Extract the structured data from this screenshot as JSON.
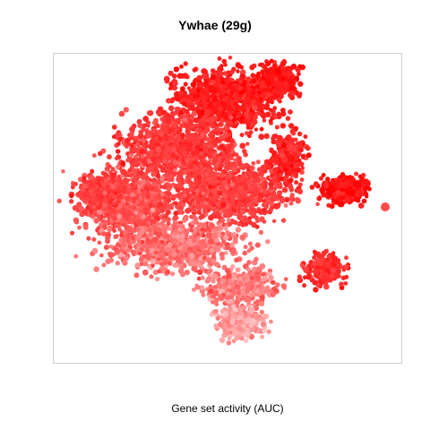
{
  "chart_data": {
    "type": "scatter",
    "title": "Ywhae (29g)",
    "xlabel": "Gene set activity (AUC)",
    "ylabel": "",
    "grid": false,
    "legend": "none",
    "colors": {
      "low": "#ffc4c4",
      "mid": "#ff4a4a",
      "high": "#ff0000",
      "dark": "#d40000"
    }
  }
}
